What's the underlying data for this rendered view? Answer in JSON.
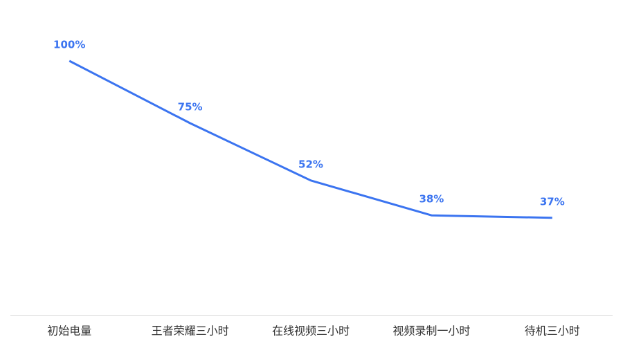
{
  "chart_data": {
    "type": "line",
    "categories": [
      "初始电量",
      "王者荣耀三小时",
      "在线视频三小时",
      "视频录制一小时",
      "待机三小时"
    ],
    "values": [
      100,
      75,
      52,
      38,
      37
    ],
    "value_labels": [
      "100%",
      "75%",
      "52%",
      "38%",
      "37%"
    ],
    "color": "#3b74f0",
    "ylim": [
      0,
      100
    ]
  }
}
